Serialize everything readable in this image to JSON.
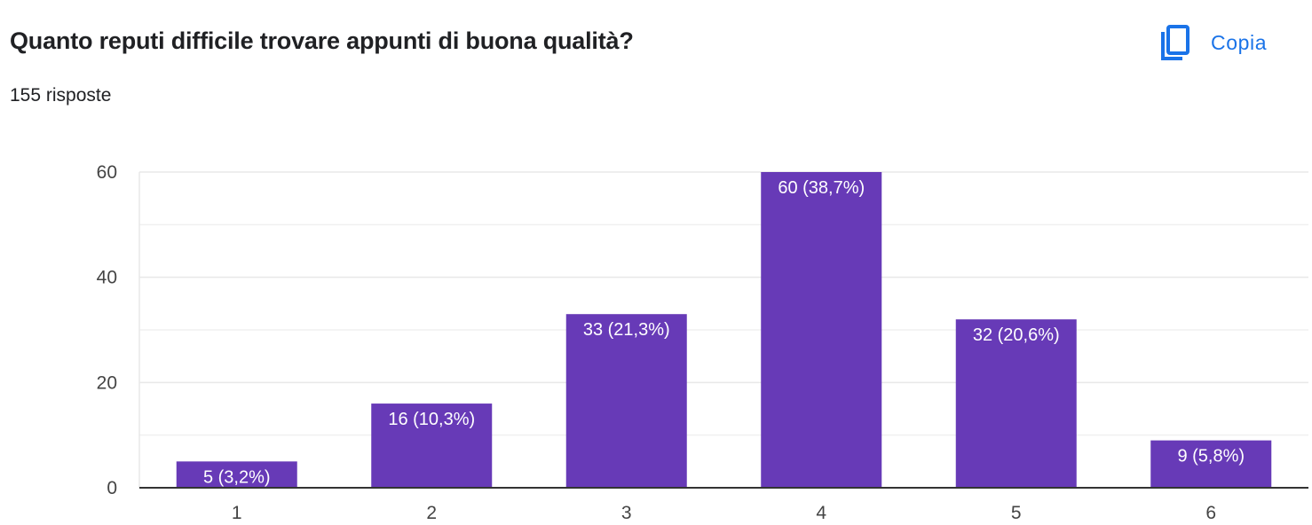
{
  "header": {
    "title": "Quanto reputi difficile trovare appunti di buona qualità?",
    "responses": "155 risposte",
    "copy_label": "Copia",
    "copy_icon": "copy-icon"
  },
  "colors": {
    "bar": "#673ab7",
    "accent": "#1a73e8",
    "grid": "#e8e8e8",
    "axis": "#333333",
    "label_inside": "#ffffff"
  },
  "chart_data": {
    "type": "bar",
    "categories": [
      "1",
      "2",
      "3",
      "4",
      "5",
      "6"
    ],
    "values": [
      5,
      16,
      33,
      60,
      32,
      9
    ],
    "data_labels": [
      "5 (3,2%)",
      "16 (10,3%)",
      "33 (21,3%)",
      "60 (38,7%)",
      "32 (20,6%)",
      "9 (5,8%)"
    ],
    "ylim": [
      0,
      60
    ],
    "yticks": [
      0,
      20,
      40,
      60
    ],
    "minor_gridlines": [
      10,
      30,
      50
    ],
    "grid": true,
    "legend": "none"
  }
}
